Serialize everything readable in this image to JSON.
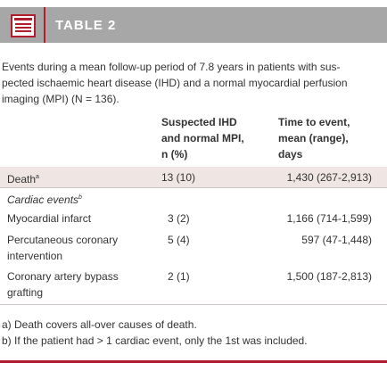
{
  "header": {
    "title": "TABLE 2"
  },
  "caption": [
    "Events during a mean follow-up period of 7.8 years in patients with sus-",
    "pected ischaemic heart disease (IHD) and a normal myocardial perfusion",
    "imaging (MPI) (N = 136)."
  ],
  "table": {
    "columns": [
      [
        "Suspected IHD",
        "and normal MPI,",
        "n (%)"
      ],
      [
        "Time to event,",
        "mean (range),",
        "days"
      ]
    ],
    "rows": [
      {
        "label": "Death",
        "sup": "a",
        "n": "13 (10)",
        "time": "1,430 (267-2,913)"
      },
      {
        "label": "Cardiac events",
        "sup": "b"
      },
      {
        "label": "Myocardial infarct",
        "n": "3 (2)",
        "time": "1,166 (714-1,599)"
      },
      {
        "label": "Percutaneous coronary intervention",
        "n": "5 (4)",
        "time": "597 (47-1,448)"
      },
      {
        "label": "Coronary artery bypass grafting",
        "n": "2 (1)",
        "time": "1,500 (187-2,813)"
      }
    ]
  },
  "footnotes": [
    "a) Death covers all-over causes of death.",
    "b) If the patient had > 1 cardiac event, only the 1st was included."
  ]
}
